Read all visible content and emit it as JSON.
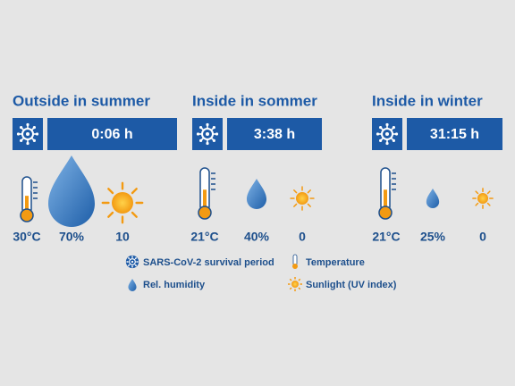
{
  "panels": [
    {
      "title": "Outside in summer",
      "time": "0:06 h",
      "temperature": "30°C",
      "humidity": "70%",
      "uv": "10"
    },
    {
      "title": "Inside in sommer",
      "time": "3:38 h",
      "temperature": "21°C",
      "humidity": "40%",
      "uv": "0"
    },
    {
      "title": "Inside in winter",
      "time": "31:15 h",
      "temperature": "21°C",
      "humidity": "25%",
      "uv": "0"
    }
  ],
  "legend": {
    "virus": "SARS-CoV-2 survival period",
    "temperature": "Temperature",
    "humidity": "Rel. humidity",
    "sunlight": "Sunlight (UV index)"
  }
}
